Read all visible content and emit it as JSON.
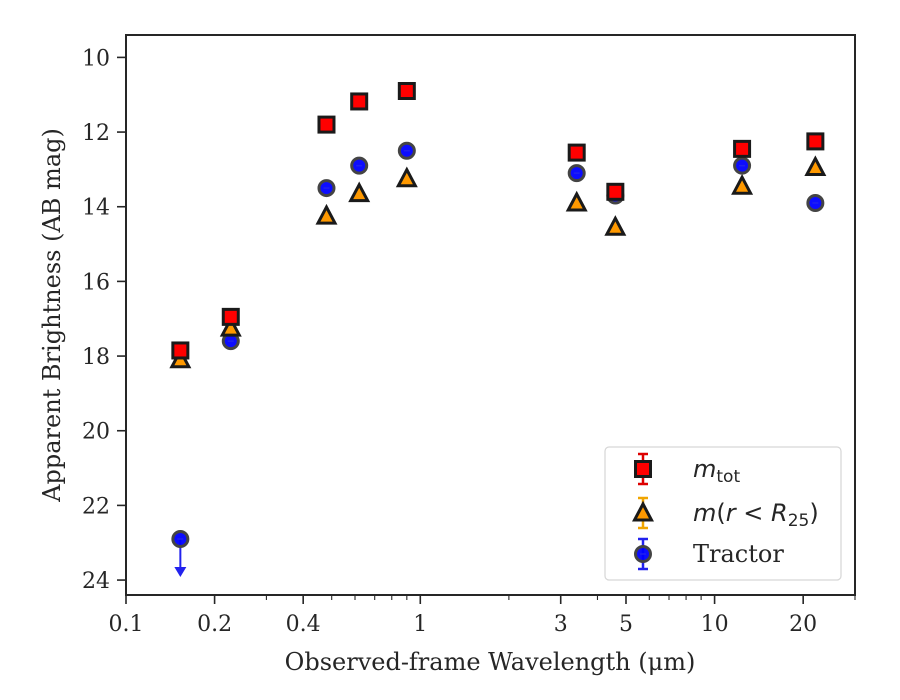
{
  "chart_data": {
    "type": "scatter",
    "xlabel": "Observed-frame Wavelength (μm)",
    "ylabel": "Apparent Brightness (AB mag)",
    "xscale": "log",
    "xlim": [
      0.1,
      30
    ],
    "ylim": [
      24.4,
      9.4
    ],
    "y_inverted": true,
    "x_ticks": [
      0.1,
      0.2,
      0.4,
      1,
      3,
      5,
      10,
      20
    ],
    "x_tick_labels": [
      "0.1",
      "0.2",
      "0.4",
      "1",
      "3",
      "5",
      "10",
      "20"
    ],
    "y_ticks": [
      10,
      12,
      14,
      16,
      18,
      20,
      22,
      24
    ],
    "y_tick_labels": [
      "10",
      "12",
      "14",
      "16",
      "18",
      "20",
      "22",
      "24"
    ],
    "legend_position": "lower right",
    "grid": false,
    "series": [
      {
        "name": "m_tot",
        "marker": "square",
        "color": "#ff0000",
        "edge_color": "#1a1a1a",
        "errorbar_color": "#dd0000",
        "points": [
          {
            "x": 0.153,
            "y": 17.85
          },
          {
            "x": 0.227,
            "y": 16.95
          },
          {
            "x": 0.48,
            "y": 11.8
          },
          {
            "x": 0.62,
            "y": 11.18
          },
          {
            "x": 0.9,
            "y": 10.9
          },
          {
            "x": 3.4,
            "y": 12.55
          },
          {
            "x": 4.6,
            "y": 13.6
          },
          {
            "x": 12.4,
            "y": 12.45
          },
          {
            "x": 22.0,
            "y": 12.25
          }
        ]
      },
      {
        "name": "m(r < R25)",
        "marker": "triangle",
        "color": "#ff9900",
        "edge_color": "#1a1a1a",
        "errorbar_color": "#f0a500",
        "points": [
          {
            "x": 0.153,
            "y": 18.1
          },
          {
            "x": 0.227,
            "y": 17.25
          },
          {
            "x": 0.48,
            "y": 14.25
          },
          {
            "x": 0.62,
            "y": 13.65
          },
          {
            "x": 0.9,
            "y": 13.25
          },
          {
            "x": 3.4,
            "y": 13.9
          },
          {
            "x": 4.6,
            "y": 14.55
          },
          {
            "x": 12.4,
            "y": 13.45
          },
          {
            "x": 22.0,
            "y": 12.95
          }
        ]
      },
      {
        "name": "Tractor",
        "marker": "circle",
        "color": "#0000ff",
        "edge_color": "#444444",
        "errorbar_color": "#2222ee",
        "points": [
          {
            "x": 0.153,
            "y": 22.9,
            "upper_limit": true
          },
          {
            "x": 0.227,
            "y": 17.6
          },
          {
            "x": 0.48,
            "y": 13.5
          },
          {
            "x": 0.62,
            "y": 12.9
          },
          {
            "x": 0.9,
            "y": 12.5
          },
          {
            "x": 3.4,
            "y": 13.1
          },
          {
            "x": 4.6,
            "y": 13.7
          },
          {
            "x": 12.4,
            "y": 12.9
          },
          {
            "x": 22.0,
            "y": 13.9
          }
        ]
      }
    ]
  }
}
